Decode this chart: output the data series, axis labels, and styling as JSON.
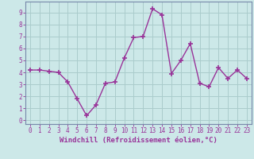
{
  "x": [
    0,
    1,
    2,
    3,
    4,
    5,
    6,
    7,
    8,
    9,
    10,
    11,
    12,
    13,
    14,
    15,
    16,
    17,
    18,
    19,
    20,
    21,
    22,
    23
  ],
  "y": [
    4.2,
    4.2,
    4.1,
    4.0,
    3.2,
    1.8,
    0.4,
    1.3,
    3.1,
    3.2,
    5.2,
    6.9,
    7.0,
    9.3,
    8.8,
    3.9,
    5.0,
    6.4,
    3.1,
    2.8,
    4.4,
    3.5,
    4.2,
    3.5
  ],
  "line_color": "#993399",
  "marker": "+",
  "markersize": 4,
  "linewidth": 1.0,
  "bg_color": "#cce8e8",
  "grid_color": "#aacccc",
  "xlabel": "Windchill (Refroidissement éolien,°C)",
  "xlabel_color": "#993399",
  "ylabel_ticks": [
    0,
    1,
    2,
    3,
    4,
    5,
    6,
    7,
    8,
    9
  ],
  "xtick_labels": [
    "0",
    "1",
    "2",
    "3",
    "4",
    "5",
    "6",
    "7",
    "8",
    "9",
    "10",
    "11",
    "12",
    "13",
    "14",
    "15",
    "16",
    "17",
    "18",
    "19",
    "20",
    "21",
    "22",
    "23"
  ],
  "ylim": [
    -0.3,
    9.9
  ],
  "xlim": [
    -0.5,
    23.5
  ],
  "tick_fontsize": 5.5,
  "xlabel_fontsize": 6.5,
  "tick_color": "#993399",
  "axis_color": "#993399",
  "spine_color": "#7788aa"
}
